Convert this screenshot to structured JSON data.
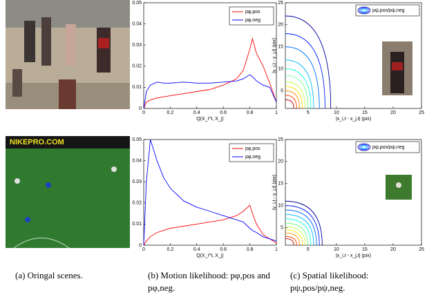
{
  "chart_data": [
    {
      "type": "line",
      "xlabel": "Q(X_i^t, X_j)",
      "xlim": [
        0,
        1
      ],
      "ylim": [
        0,
        0.05
      ],
      "xticks": [
        0,
        0.2,
        0.4,
        0.6,
        0.8,
        1
      ],
      "yticks": [
        0,
        0.01,
        0.02,
        0.03,
        0.04,
        0.05
      ],
      "legend": "upper right",
      "x": [
        0,
        0.02,
        0.05,
        0.1,
        0.15,
        0.2,
        0.3,
        0.4,
        0.5,
        0.6,
        0.7,
        0.75,
        0.8,
        0.82,
        0.85,
        0.9,
        0.95,
        1
      ],
      "series": [
        {
          "name": "pφ,pos",
          "color": "#ff0000",
          "values": [
            0,
            0.003,
            0.004,
            0.005,
            0.0055,
            0.006,
            0.007,
            0.008,
            0.009,
            0.011,
            0.014,
            0.018,
            0.028,
            0.033,
            0.026,
            0.02,
            0.012,
            0.003
          ]
        },
        {
          "name": "pφ,neg",
          "color": "#0000ff",
          "values": [
            0,
            0.008,
            0.011,
            0.0125,
            0.012,
            0.012,
            0.0125,
            0.012,
            0.012,
            0.0125,
            0.013,
            0.014,
            0.016,
            0.015,
            0.013,
            0.011,
            0.01,
            0.003
          ]
        }
      ]
    },
    {
      "type": "contour",
      "xlabel": "|x_i,t - x_j,t| (pix)",
      "ylabel": "|y_i,t - y_j,t| (pix)",
      "xlim": [
        1,
        25
      ],
      "ylim": [
        1,
        25
      ],
      "xticks": [
        5,
        10,
        15,
        20,
        25
      ],
      "yticks": [
        5,
        10,
        15,
        20,
        25
      ],
      "legend": "pψ,pos/pψ,neg",
      "colors": [
        "#0000a0",
        "#0020ff",
        "#0070ff",
        "#00c0ff",
        "#20ffe0",
        "#70ff90",
        "#c0ff40",
        "#ffe000",
        "#ff9000",
        "#ff4000",
        "#c00000"
      ],
      "x_extent": [
        8,
        7,
        6,
        5,
        4.5,
        4,
        3.5,
        3,
        2.5,
        2,
        1.5
      ],
      "y_extent": [
        21,
        17,
        14,
        11,
        9,
        7.5,
        6,
        5,
        4,
        3,
        2
      ]
    },
    {
      "type": "line",
      "xlabel": "Q(X_i^t, X_j)",
      "xlim": [
        0,
        1
      ],
      "ylim": [
        0,
        0.05
      ],
      "xticks": [
        0,
        0.2,
        0.4,
        0.6,
        0.8,
        1
      ],
      "yticks": [
        0,
        0.01,
        0.02,
        0.03,
        0.04,
        0.05
      ],
      "legend": "upper right",
      "x": [
        0,
        0.02,
        0.05,
        0.1,
        0.15,
        0.2,
        0.3,
        0.4,
        0.5,
        0.6,
        0.7,
        0.75,
        0.8,
        0.82,
        0.85,
        0.9,
        0.95,
        1
      ],
      "series": [
        {
          "name": "pφ,pos",
          "color": "#ff0000",
          "values": [
            0,
            0.002,
            0.004,
            0.006,
            0.007,
            0.008,
            0.009,
            0.01,
            0.011,
            0.012,
            0.014,
            0.016,
            0.019,
            0.015,
            0.01,
            0.005,
            0.003,
            0.001
          ]
        },
        {
          "name": "pφ,neg",
          "color": "#0000ff",
          "values": [
            0,
            0.03,
            0.05,
            0.04,
            0.032,
            0.027,
            0.021,
            0.018,
            0.016,
            0.014,
            0.012,
            0.011,
            0.008,
            0.007,
            0.006,
            0.004,
            0.003,
            0.002
          ]
        }
      ]
    },
    {
      "type": "contour",
      "xlabel": "|x_i,t - x_j,t| (pix)",
      "ylabel": "|y_i,t - y_j,t| (pix)",
      "xlim": [
        1,
        25
      ],
      "ylim": [
        1,
        25
      ],
      "xticks": [
        5,
        10,
        15,
        20,
        25
      ],
      "yticks": [
        5,
        10,
        15,
        20,
        25
      ],
      "legend": "pψ,pos/pψ,neg",
      "colors": [
        "#0000a0",
        "#0020ff",
        "#0070ff",
        "#00c0ff",
        "#20ffe0",
        "#70ff90",
        "#c0ff40",
        "#ffe000",
        "#ff9000",
        "#ff4000",
        "#c00000"
      ],
      "x_extent": [
        6.5,
        6,
        5.5,
        5,
        4.5,
        4,
        3.5,
        3,
        2.5,
        2,
        1.5
      ],
      "y_extent": [
        10,
        9,
        8,
        7,
        6,
        5,
        4.2,
        3.5,
        2.8,
        2,
        1.5
      ]
    }
  ],
  "scenes": {
    "banner_text": "NIKEPRO.COM"
  },
  "captions": [
    "(a) Oringal scenes.",
    "(b) Motion likelihood: pφ,pos and pφ,neg.",
    "(c) Spatial likelihood: pψ,pos/pψ,neg."
  ]
}
